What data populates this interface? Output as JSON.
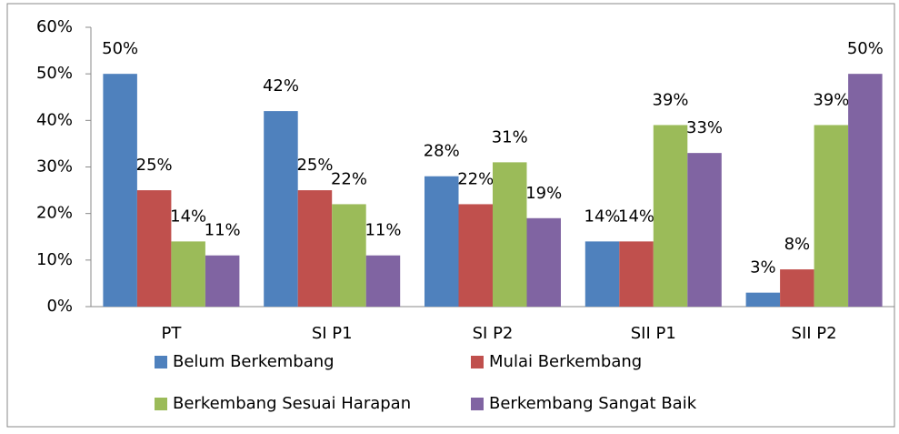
{
  "chart_data": {
    "type": "bar",
    "categories": [
      "PT",
      "SI P1",
      "SI P2",
      "SII P1",
      "SII P2"
    ],
    "series": [
      {
        "name": "Belum Berkembang",
        "color": "#4f81bd",
        "values": [
          50,
          42,
          28,
          14,
          3
        ],
        "value_labels": [
          "50%",
          "42%",
          "28%",
          "14%",
          "3%"
        ]
      },
      {
        "name": "Mulai Berkembang",
        "color": "#c0504d",
        "values": [
          25,
          25,
          22,
          14,
          8
        ],
        "value_labels": [
          "25%",
          "25%",
          "22%",
          "14%",
          "8%"
        ]
      },
      {
        "name": "Berkembang Sesuai Harapan",
        "color": "#9bbb59",
        "values": [
          14,
          22,
          31,
          39,
          39
        ],
        "value_labels": [
          "14%",
          "22%",
          "31%",
          "39%",
          "39%"
        ]
      },
      {
        "name": "Berkembang Sangat Baik",
        "color": "#8064a2",
        "values": [
          11,
          11,
          19,
          33,
          50
        ],
        "value_labels": [
          "11%",
          "11%",
          "19%",
          "33%",
          "50%"
        ]
      }
    ],
    "ylim": [
      0,
      60
    ],
    "yticks": [
      {
        "value": 0,
        "label": "0%"
      },
      {
        "value": 10,
        "label": "10%"
      },
      {
        "value": 20,
        "label": "20%"
      },
      {
        "value": 30,
        "label": "30%"
      },
      {
        "value": 40,
        "label": "40%"
      },
      {
        "value": 50,
        "label": "50%"
      },
      {
        "value": 60,
        "label": "60%"
      }
    ],
    "legend": "bottom"
  }
}
